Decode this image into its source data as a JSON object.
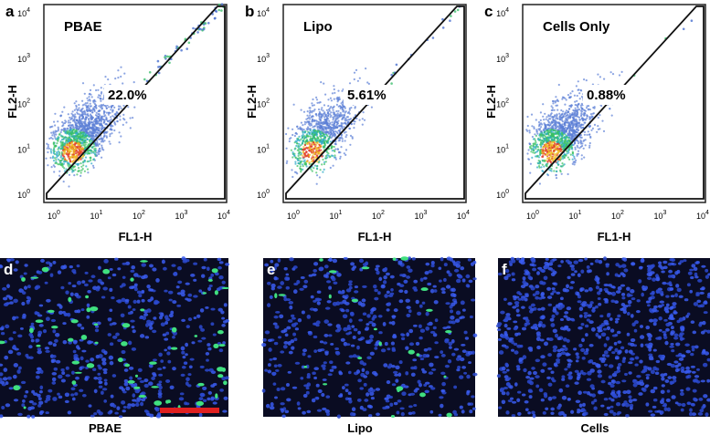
{
  "flow_panels": [
    {
      "letter": "a",
      "title": "PBAE",
      "gate_percent": "22.0%",
      "x_label": "FL1-H",
      "y_label": "FL2-H"
    },
    {
      "letter": "b",
      "title": "Lipo",
      "gate_percent": "5.61%",
      "x_label": "FL1-H",
      "y_label": "FL2-H"
    },
    {
      "letter": "c",
      "title": "Cells Only",
      "gate_percent": "0.88%",
      "x_label": "FL1-H",
      "y_label": "FL2-H"
    }
  ],
  "axis_ticks": {
    "base": "10",
    "exponents": [
      "0",
      "1",
      "2",
      "3",
      "4"
    ]
  },
  "image_panels": [
    {
      "letter": "d",
      "caption": "PBAE"
    },
    {
      "letter": "e",
      "caption": "Lipo"
    },
    {
      "letter": "f",
      "caption": "Cells"
    }
  ]
}
